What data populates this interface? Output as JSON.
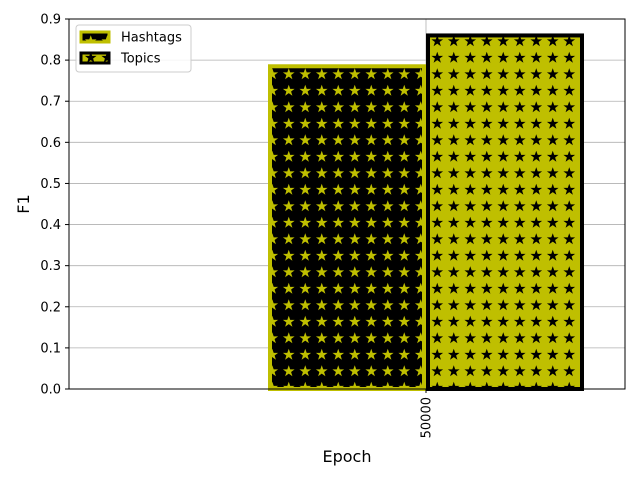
{
  "chart_data": {
    "type": "bar",
    "categories": [
      "50000"
    ],
    "series": [
      {
        "name": "Hashtags",
        "values": [
          0.785
        ],
        "fill": "#000000",
        "hatch": "#bfbf00",
        "edge": "#bfbf00"
      },
      {
        "name": "Topics",
        "values": [
          0.86
        ],
        "fill": "#bfbf00",
        "hatch": "#000000",
        "edge": "#000000"
      }
    ],
    "xlabel": "Epoch",
    "ylabel": "F1",
    "ylim": [
      0,
      0.9
    ],
    "yticks": [
      "0.0",
      "0.1",
      "0.2",
      "0.3",
      "0.4",
      "0.5",
      "0.6",
      "0.7",
      "0.8",
      "0.9"
    ],
    "grid": true,
    "legend_position": "top-left",
    "hatch_pattern": "stars"
  }
}
